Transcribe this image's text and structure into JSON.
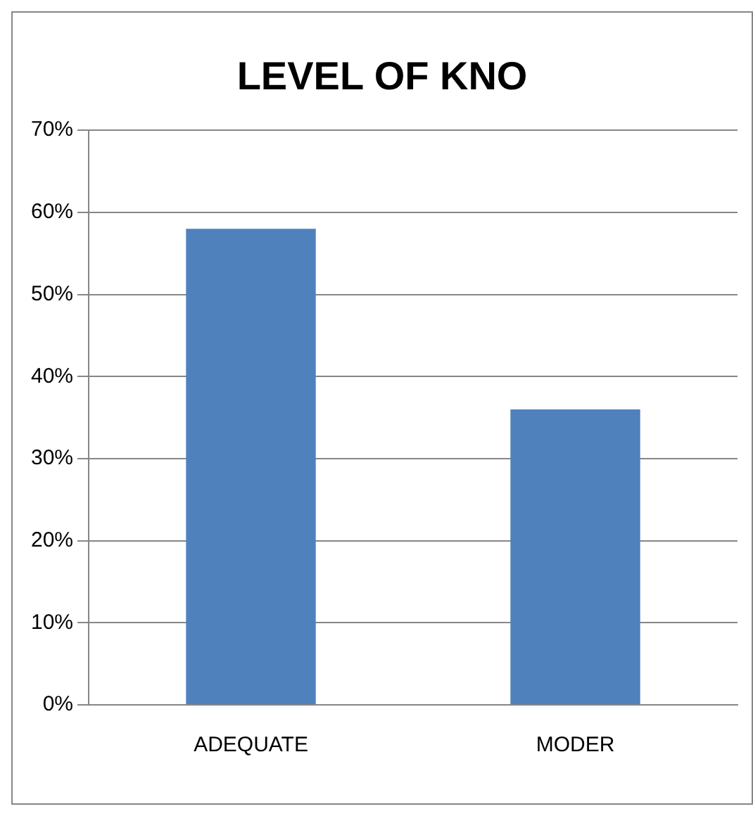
{
  "chart_data": {
    "type": "bar",
    "title": "LEVEL OF KNO",
    "categories": [
      "ADEQUATE",
      "MODER"
    ],
    "values": [
      58,
      36
    ],
    "color": "#4f81bd",
    "ylim": [
      0,
      70
    ],
    "yticks": [
      {
        "value": 0,
        "label": "0%"
      },
      {
        "value": 10,
        "label": "10%"
      },
      {
        "value": 20,
        "label": "20%"
      },
      {
        "value": 30,
        "label": "30%"
      },
      {
        "value": 40,
        "label": "40%"
      },
      {
        "value": 50,
        "label": "50%"
      },
      {
        "value": 60,
        "label": "60%"
      },
      {
        "value": 70,
        "label": "70%"
      }
    ],
    "grid": "y",
    "legend": false
  }
}
